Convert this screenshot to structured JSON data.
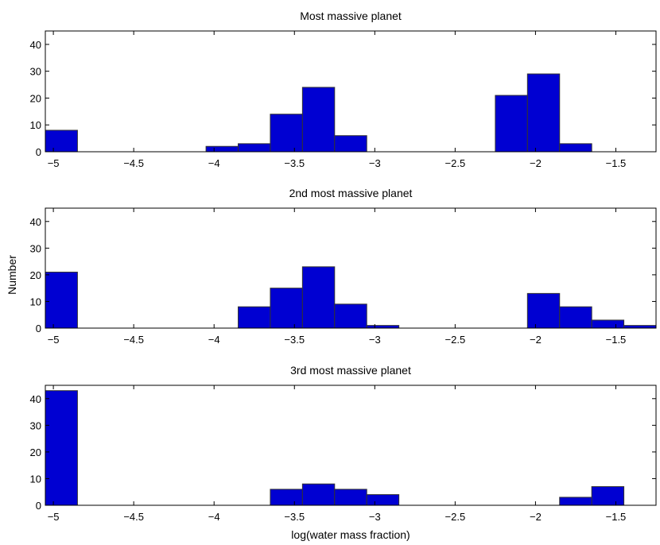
{
  "figure": {
    "ylabel": "Number",
    "xlabel": "log(water mass fraction)"
  },
  "chart_data": [
    {
      "type": "bar",
      "title": "Most massive planet",
      "xlim": [
        -5.05,
        -1.25
      ],
      "ylim": [
        0,
        45
      ],
      "xticks": [
        "−5",
        "−4.5",
        "−4",
        "−3.5",
        "−3",
        "−2.5",
        "−2",
        "−1.5"
      ],
      "xtick_values": [
        -5,
        -4.5,
        -4,
        -3.5,
        -3,
        -2.5,
        -2,
        -1.5
      ],
      "yticks": [
        "0",
        "10",
        "20",
        "30",
        "40"
      ],
      "ytick_values": [
        0,
        10,
        20,
        30,
        40
      ],
      "bins": [
        {
          "x0": -5.05,
          "x1": -4.85,
          "count": 8
        },
        {
          "x0": -4.05,
          "x1": -3.85,
          "count": 2
        },
        {
          "x0": -3.85,
          "x1": -3.65,
          "count": 3
        },
        {
          "x0": -3.65,
          "x1": -3.45,
          "count": 14
        },
        {
          "x0": -3.45,
          "x1": -3.25,
          "count": 24
        },
        {
          "x0": -3.25,
          "x1": -3.05,
          "count": 6
        },
        {
          "x0": -2.25,
          "x1": -2.05,
          "count": 21
        },
        {
          "x0": -2.05,
          "x1": -1.85,
          "count": 29
        },
        {
          "x0": -1.85,
          "x1": -1.65,
          "count": 3
        }
      ]
    },
    {
      "type": "bar",
      "title": "2nd most massive planet",
      "xlim": [
        -5.05,
        -1.25
      ],
      "ylim": [
        0,
        45
      ],
      "xticks": [
        "−5",
        "−4.5",
        "−4",
        "−3.5",
        "−3",
        "−2.5",
        "−2",
        "−1.5"
      ],
      "xtick_values": [
        -5,
        -4.5,
        -4,
        -3.5,
        -3,
        -2.5,
        -2,
        -1.5
      ],
      "yticks": [
        "0",
        "10",
        "20",
        "30",
        "40"
      ],
      "ytick_values": [
        0,
        10,
        20,
        30,
        40
      ],
      "bins": [
        {
          "x0": -5.05,
          "x1": -4.85,
          "count": 21
        },
        {
          "x0": -3.85,
          "x1": -3.65,
          "count": 8
        },
        {
          "x0": -3.65,
          "x1": -3.45,
          "count": 15
        },
        {
          "x0": -3.45,
          "x1": -3.25,
          "count": 23
        },
        {
          "x0": -3.25,
          "x1": -3.05,
          "count": 9
        },
        {
          "x0": -3.05,
          "x1": -2.85,
          "count": 1
        },
        {
          "x0": -2.05,
          "x1": -1.85,
          "count": 13
        },
        {
          "x0": -1.85,
          "x1": -1.65,
          "count": 8
        },
        {
          "x0": -1.65,
          "x1": -1.45,
          "count": 3
        },
        {
          "x0": -1.45,
          "x1": -1.25,
          "count": 1
        }
      ]
    },
    {
      "type": "bar",
      "title": "3rd most massive planet",
      "xlim": [
        -5.05,
        -1.25
      ],
      "ylim": [
        0,
        45
      ],
      "xticks": [
        "−5",
        "−4.5",
        "−4",
        "−3.5",
        "−3",
        "−2.5",
        "−2",
        "−1.5"
      ],
      "xtick_values": [
        -5,
        -4.5,
        -4,
        -3.5,
        -3,
        -2.5,
        -2,
        -1.5
      ],
      "yticks": [
        "0",
        "10",
        "20",
        "30",
        "40"
      ],
      "ytick_values": [
        0,
        10,
        20,
        30,
        40
      ],
      "bins": [
        {
          "x0": -5.05,
          "x1": -4.85,
          "count": 43
        },
        {
          "x0": -3.65,
          "x1": -3.45,
          "count": 6
        },
        {
          "x0": -3.45,
          "x1": -3.25,
          "count": 8
        },
        {
          "x0": -3.25,
          "x1": -3.05,
          "count": 6
        },
        {
          "x0": -3.05,
          "x1": -2.85,
          "count": 4
        },
        {
          "x0": -1.85,
          "x1": -1.65,
          "count": 3
        },
        {
          "x0": -1.65,
          "x1": -1.45,
          "count": 7
        }
      ]
    }
  ],
  "style": {
    "bar_fill": "#0000d2",
    "bar_stroke": "#333333",
    "axis_color": "#000000",
    "background": "#ffffff"
  }
}
